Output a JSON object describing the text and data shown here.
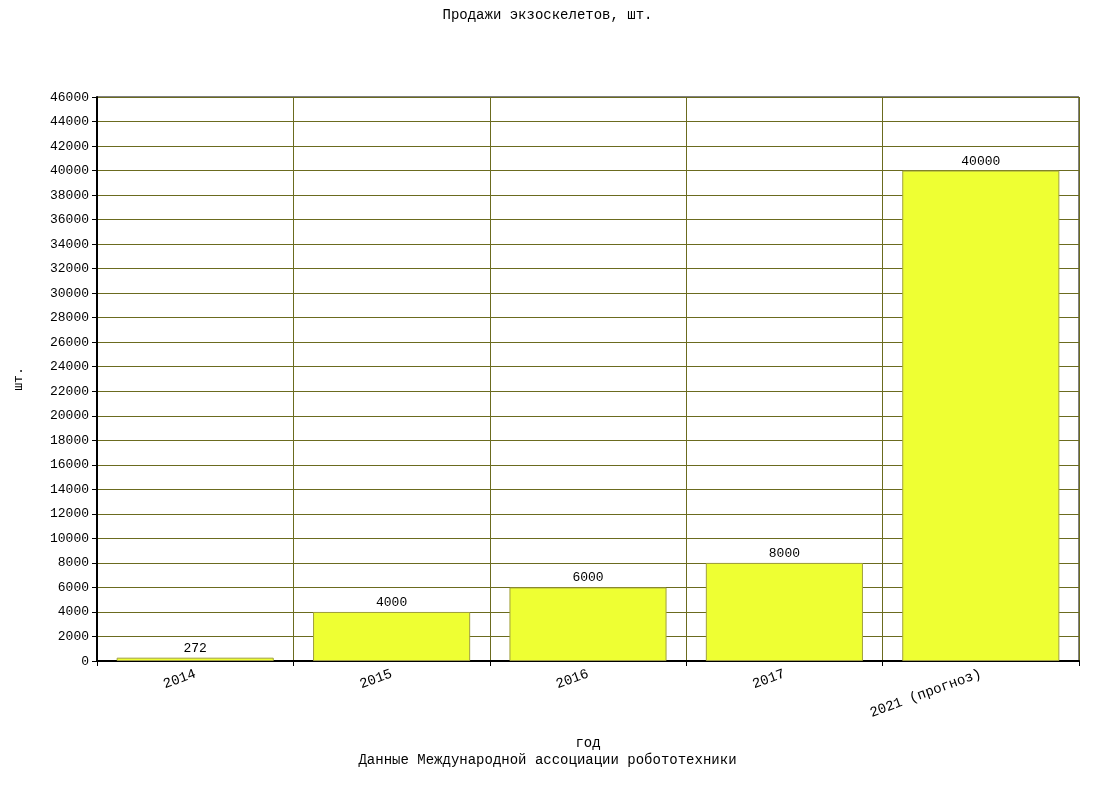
{
  "chart_data": {
    "type": "bar",
    "title": "Продажи экзоскелетов, шт.",
    "xlabel": "год",
    "ylabel": "шт.",
    "annotations": [
      "Данные Международной ассоциации робототехники"
    ],
    "categories": [
      "2014",
      "2015",
      "2016",
      "2017",
      "2021 (прогноз)"
    ],
    "values": [
      272,
      4000,
      6000,
      8000,
      40000
    ],
    "color": "#eeff33",
    "ylim": [
      0,
      46000
    ],
    "yticks": [
      0,
      2000,
      4000,
      6000,
      8000,
      10000,
      12000,
      14000,
      16000,
      18000,
      20000,
      22000,
      24000,
      26000,
      28000,
      30000,
      32000,
      34000,
      36000,
      38000,
      40000,
      42000,
      44000,
      46000
    ],
    "grid": true,
    "data_labels": true
  }
}
